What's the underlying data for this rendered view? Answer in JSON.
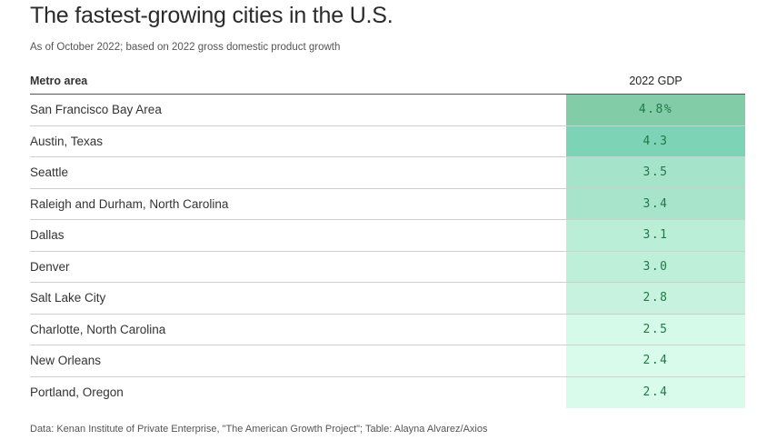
{
  "title": "The fastest-growing cities in the U.S.",
  "subtitle": "As of October 2022; based on 2022 gross domestic product growth",
  "table": {
    "columns": [
      "Metro area",
      "2022 GDP"
    ],
    "rows": [
      {
        "metro": "San Francisco Bay Area",
        "gdp": "4.8%",
        "color": "#82cca8"
      },
      {
        "metro": "Austin, Texas",
        "gdp": "4.3",
        "color": "#7dd3b5"
      },
      {
        "metro": "Seattle",
        "gdp": "3.5",
        "color": "#a6e3cb"
      },
      {
        "metro": "Raleigh and Durham, North Carolina",
        "gdp": "3.4",
        "color": "#a8e4cc"
      },
      {
        "metro": "Dallas",
        "gdp": "3.1",
        "color": "#baeed7"
      },
      {
        "metro": "Denver",
        "gdp": "3.0",
        "color": "#bdefd9"
      },
      {
        "metro": "Salt Lake City",
        "gdp": "2.8",
        "color": "#c7f2df"
      },
      {
        "metro": "Charlotte, North Carolina",
        "gdp": "2.5",
        "color": "#d6fae9"
      },
      {
        "metro": "New Orleans",
        "gdp": "2.4",
        "color": "#d9fbeb"
      },
      {
        "metro": "Portland, Oregon",
        "gdp": "2.4",
        "color": "#d9fbeb"
      }
    ]
  },
  "chart_data": {
    "type": "table",
    "title": "The fastest-growing cities in the U.S.",
    "subtitle": "As of October 2022; based on 2022 gross domestic product growth",
    "columns": [
      "Metro area",
      "2022 GDP"
    ],
    "categories": [
      "San Francisco Bay Area",
      "Austin, Texas",
      "Seattle",
      "Raleigh and Durham, North Carolina",
      "Dallas",
      "Denver",
      "Salt Lake City",
      "Charlotte, North Carolina",
      "New Orleans",
      "Portland, Oregon"
    ],
    "values": [
      4.8,
      4.3,
      3.5,
      3.4,
      3.1,
      3.0,
      2.8,
      2.5,
      2.4,
      2.4
    ],
    "unit": "%",
    "source": "Data: Kenan Institute of Private Enterprise, \"The American Growth Project\"; Table: Alayna Alvarez/Axios"
  },
  "source": "Data: Kenan Institute of Private Enterprise, \"The American Growth Project\"; Table: Alayna Alvarez/Axios"
}
